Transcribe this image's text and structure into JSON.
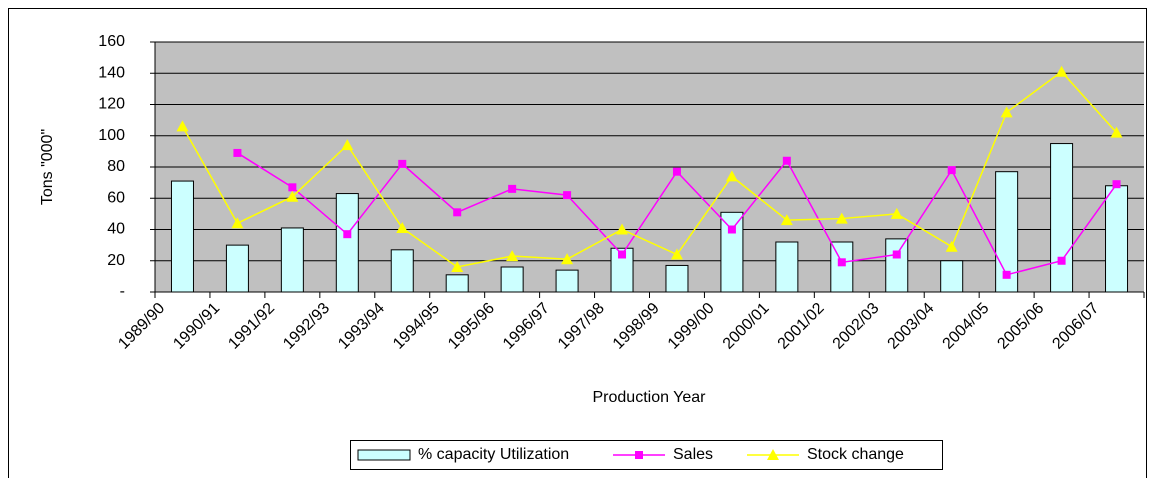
{
  "chart_data": {
    "type": "combo",
    "y_label": "Tons \"000\"",
    "x_label": "Production Year",
    "categories": [
      "1989/90",
      "1990/91",
      "1991/92",
      "1992/93",
      "1993/94",
      "1994/95",
      "1995/96",
      "1996/97",
      "1997/98",
      "1998/99",
      "1999/00",
      "2000/01",
      "2001/02",
      "2002/03",
      "2003/04",
      "2004/05",
      "2005/06",
      "2006/07"
    ],
    "series": [
      {
        "name": "% capacity Utilization",
        "type": "bar",
        "color": "#ccffff",
        "values": [
          71,
          30,
          41,
          63,
          27,
          11,
          16,
          14,
          28,
          17,
          51,
          32,
          32,
          34,
          20,
          77,
          95,
          68
        ]
      },
      {
        "name": "Sales",
        "type": "line",
        "marker": "square",
        "color": "#ff00ff",
        "values": [
          null,
          89,
          67,
          37,
          82,
          51,
          66,
          62,
          24,
          77,
          40,
          84,
          19,
          24,
          78,
          11,
          20,
          69
        ]
      },
      {
        "name": "Stock change",
        "type": "line",
        "marker": "triangle",
        "color": "#ffff00",
        "values": [
          106,
          44,
          61,
          94,
          41,
          16,
          23,
          21,
          40,
          24,
          74,
          46,
          47,
          50,
          29,
          115,
          141,
          102
        ]
      }
    ],
    "ylim": [
      0,
      160
    ],
    "yticks": [
      {
        "value": 0,
        "label": "-"
      },
      20,
      40,
      60,
      80,
      100,
      120,
      140,
      160
    ],
    "grid": true,
    "legend": "bottom"
  }
}
